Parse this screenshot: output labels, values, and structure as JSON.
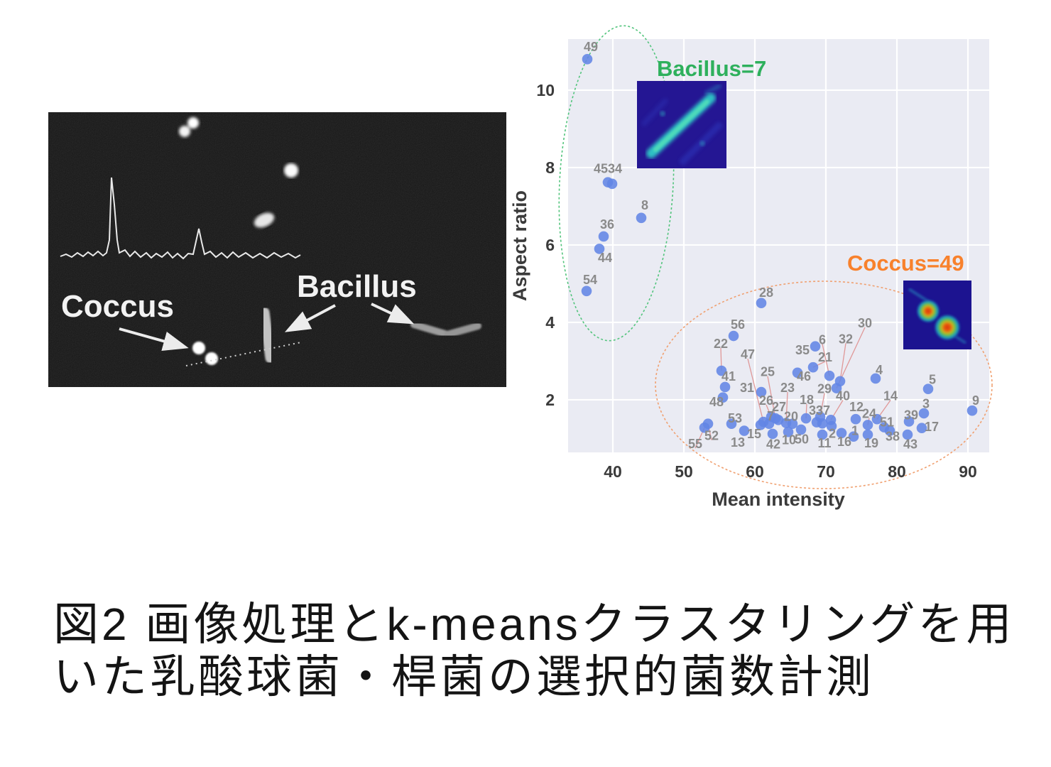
{
  "caption": {
    "line1": "図2 画像処理とk-meansクラスタリングを用",
    "line2": "いた乳酸球菌・桿菌の選択的菌数計測"
  },
  "micrograph": {
    "coccus_label": "Coccus",
    "bacillus_label": "Bacillus"
  },
  "chart_data": {
    "type": "scatter",
    "xlabel": "Mean intensity",
    "ylabel": "Aspect ratio",
    "x_ticks": [
      40,
      50,
      60,
      70,
      80,
      90
    ],
    "y_ticks": [
      2,
      4,
      6,
      8,
      10
    ],
    "xlim": [
      33.7,
      93.0
    ],
    "ylim": [
      0.64,
      11.32
    ],
    "grid": true,
    "background": "#eaebf3",
    "gridline_color": "#ffffff",
    "point_color": "#6285e5",
    "point_label_color": "#8a8a8a",
    "leader_color": "#e09898",
    "tick_color": "#3b3b3b",
    "clusters": [
      {
        "name": "Bacillus",
        "annotation": "Bacillus=7",
        "count": 7,
        "color": "#2eb05c",
        "ellipse_color": "#52c47c",
        "point_ids": [
          49,
          45,
          34,
          8,
          36,
          44,
          54
        ]
      },
      {
        "name": "Coccus",
        "annotation": "Coccus=49",
        "count": 49,
        "color": "#f8812c",
        "ellipse_color": "#f0a070",
        "point_ids": [
          28,
          56,
          22,
          41,
          48,
          31,
          25,
          47,
          46,
          21,
          35,
          6,
          32,
          30,
          23,
          26,
          27,
          7,
          20,
          18,
          29,
          40,
          33,
          37,
          12,
          24,
          14,
          4,
          5,
          3,
          9,
          39,
          17,
          51,
          2,
          1,
          38,
          43,
          19,
          16,
          11,
          10,
          50,
          42,
          15,
          13,
          53,
          52,
          55
        ]
      }
    ],
    "points": [
      {
        "id": 49,
        "x": 36.4,
        "y": 10.8,
        "lx": 36.9,
        "ly": 11.12,
        "leader": false
      },
      {
        "id": 45,
        "x": 39.3,
        "y": 7.62,
        "lx": 38.3,
        "ly": 7.97,
        "leader": false
      },
      {
        "id": 34,
        "x": 39.9,
        "y": 7.58,
        "lx": 40.3,
        "ly": 7.97,
        "leader": false
      },
      {
        "id": 8,
        "x": 44.0,
        "y": 6.7,
        "lx": 44.5,
        "ly": 7.03,
        "leader": false
      },
      {
        "id": 36,
        "x": 38.7,
        "y": 6.22,
        "lx": 39.2,
        "ly": 6.53,
        "leader": false
      },
      {
        "id": 44,
        "x": 38.1,
        "y": 5.9,
        "lx": 38.9,
        "ly": 5.67,
        "leader": false
      },
      {
        "id": 54,
        "x": 36.3,
        "y": 4.81,
        "lx": 36.8,
        "ly": 5.1,
        "leader": false
      },
      {
        "id": 28,
        "x": 60.9,
        "y": 4.5,
        "lx": 61.6,
        "ly": 4.77,
        "leader": false
      },
      {
        "id": 56,
        "x": 57.0,
        "y": 3.65,
        "lx": 57.6,
        "ly": 3.94,
        "leader": false
      },
      {
        "id": 22,
        "x": 55.3,
        "y": 2.75,
        "lx": 55.2,
        "ly": 3.45,
        "leader": true
      },
      {
        "id": 41,
        "x": 55.8,
        "y": 2.33,
        "lx": 56.3,
        "ly": 2.6,
        "leader": false
      },
      {
        "id": 48,
        "x": 55.5,
        "y": 2.06,
        "lx": 54.6,
        "ly": 1.94,
        "leader": false
      },
      {
        "id": 31,
        "x": 60.9,
        "y": 2.2,
        "lx": 58.9,
        "ly": 2.31,
        "leader": false
      },
      {
        "id": 25,
        "x": 62.9,
        "y": 1.52,
        "lx": 61.8,
        "ly": 2.72,
        "leader": true
      },
      {
        "id": 47,
        "x": 61.2,
        "y": 1.43,
        "lx": 59.0,
        "ly": 3.17,
        "leader": true
      },
      {
        "id": 46,
        "x": 66.0,
        "y": 2.7,
        "lx": 66.9,
        "ly": 2.6,
        "leader": false
      },
      {
        "id": 21,
        "x": 68.2,
        "y": 2.84,
        "lx": 69.9,
        "ly": 3.1,
        "leader": true
      },
      {
        "id": 35,
        "x": 68.5,
        "y": 3.38,
        "lx": 66.7,
        "ly": 3.28,
        "leader": false
      },
      {
        "id": 6,
        "x": 70.5,
        "y": 2.62,
        "lx": 69.5,
        "ly": 3.55,
        "leader": true
      },
      {
        "id": 32,
        "x": 72.0,
        "y": 2.48,
        "lx": 72.8,
        "ly": 3.57,
        "leader": true
      },
      {
        "id": 30,
        "x": 71.5,
        "y": 2.3,
        "lx": 75.5,
        "ly": 3.98,
        "leader": true
      },
      {
        "id": 23,
        "x": 64.4,
        "y": 1.4,
        "lx": 64.6,
        "ly": 2.31,
        "leader": true
      },
      {
        "id": 26,
        "x": 62.3,
        "y": 1.56,
        "lx": 61.6,
        "ly": 1.98,
        "leader": true
      },
      {
        "id": 27,
        "x": 63.3,
        "y": 1.48,
        "lx": 63.4,
        "ly": 1.82,
        "leader": false
      },
      {
        "id": 7,
        "x": 62.0,
        "y": 1.38,
        "lx": 62.2,
        "ly": 1.58,
        "leader": false
      },
      {
        "id": 20,
        "x": 65.3,
        "y": 1.38,
        "lx": 65.1,
        "ly": 1.57,
        "leader": false
      },
      {
        "id": 18,
        "x": 67.2,
        "y": 1.52,
        "lx": 67.3,
        "ly": 2.0,
        "leader": true
      },
      {
        "id": 29,
        "x": 69.2,
        "y": 1.56,
        "lx": 69.8,
        "ly": 2.28,
        "leader": true
      },
      {
        "id": 40,
        "x": 70.7,
        "y": 1.48,
        "lx": 72.4,
        "ly": 2.1,
        "leader": true
      },
      {
        "id": 33,
        "x": 68.7,
        "y": 1.42,
        "lx": 68.6,
        "ly": 1.72,
        "leader": false
      },
      {
        "id": 37,
        "x": 69.5,
        "y": 1.39,
        "lx": 69.6,
        "ly": 1.72,
        "leader": false
      },
      {
        "id": 12,
        "x": 74.2,
        "y": 1.5,
        "lx": 74.3,
        "ly": 1.82,
        "leader": false
      },
      {
        "id": 24,
        "x": 75.9,
        "y": 1.35,
        "lx": 76.1,
        "ly": 1.64,
        "leader": true
      },
      {
        "id": 14,
        "x": 77.2,
        "y": 1.5,
        "lx": 79.1,
        "ly": 2.1,
        "leader": true
      },
      {
        "id": 4,
        "x": 77.0,
        "y": 2.55,
        "lx": 77.5,
        "ly": 2.77,
        "leader": false
      },
      {
        "id": 5,
        "x": 84.4,
        "y": 2.28,
        "lx": 85.0,
        "ly": 2.52,
        "leader": false
      },
      {
        "id": 3,
        "x": 83.8,
        "y": 1.65,
        "lx": 84.1,
        "ly": 1.9,
        "leader": false
      },
      {
        "id": 9,
        "x": 90.6,
        "y": 1.72,
        "lx": 91.1,
        "ly": 1.98,
        "leader": false
      },
      {
        "id": 39,
        "x": 81.7,
        "y": 1.44,
        "lx": 82.0,
        "ly": 1.6,
        "leader": false
      },
      {
        "id": 17,
        "x": 83.5,
        "y": 1.27,
        "lx": 84.9,
        "ly": 1.3,
        "leader": false
      },
      {
        "id": 51,
        "x": 78.2,
        "y": 1.29,
        "lx": 78.6,
        "ly": 1.42,
        "leader": false
      },
      {
        "id": 2,
        "x": 70.8,
        "y": 1.32,
        "lx": 70.9,
        "ly": 1.13,
        "leader": false
      },
      {
        "id": 1,
        "x": 73.9,
        "y": 1.05,
        "lx": 74.1,
        "ly": 1.2,
        "leader": false
      },
      {
        "id": 38,
        "x": 79.0,
        "y": 1.2,
        "lx": 79.4,
        "ly": 1.05,
        "leader": false
      },
      {
        "id": 43,
        "x": 81.5,
        "y": 1.1,
        "lx": 81.9,
        "ly": 0.85,
        "leader": false
      },
      {
        "id": 19,
        "x": 75.9,
        "y": 1.1,
        "lx": 76.4,
        "ly": 0.88,
        "leader": false
      },
      {
        "id": 16,
        "x": 72.2,
        "y": 1.14,
        "lx": 72.6,
        "ly": 0.92,
        "leader": false
      },
      {
        "id": 11,
        "x": 69.5,
        "y": 1.1,
        "lx": 69.8,
        "ly": 0.88,
        "leader": false
      },
      {
        "id": 10,
        "x": 64.7,
        "y": 1.17,
        "lx": 64.8,
        "ly": 0.96,
        "leader": false
      },
      {
        "id": 50,
        "x": 66.5,
        "y": 1.23,
        "lx": 66.6,
        "ly": 0.98,
        "leader": false
      },
      {
        "id": 42,
        "x": 62.5,
        "y": 1.12,
        "lx": 62.6,
        "ly": 0.85,
        "leader": false
      },
      {
        "id": 15,
        "x": 60.8,
        "y": 1.35,
        "lx": 59.9,
        "ly": 1.12,
        "leader": false
      },
      {
        "id": 13,
        "x": 58.5,
        "y": 1.2,
        "lx": 57.6,
        "ly": 0.9,
        "leader": false
      },
      {
        "id": 53,
        "x": 56.7,
        "y": 1.38,
        "lx": 57.2,
        "ly": 1.52,
        "leader": false
      },
      {
        "id": 52,
        "x": 53.4,
        "y": 1.38,
        "lx": 53.9,
        "ly": 1.07,
        "leader": true
      },
      {
        "id": 55,
        "x": 52.9,
        "y": 1.28,
        "lx": 51.6,
        "ly": 0.86,
        "leader": true
      }
    ]
  }
}
